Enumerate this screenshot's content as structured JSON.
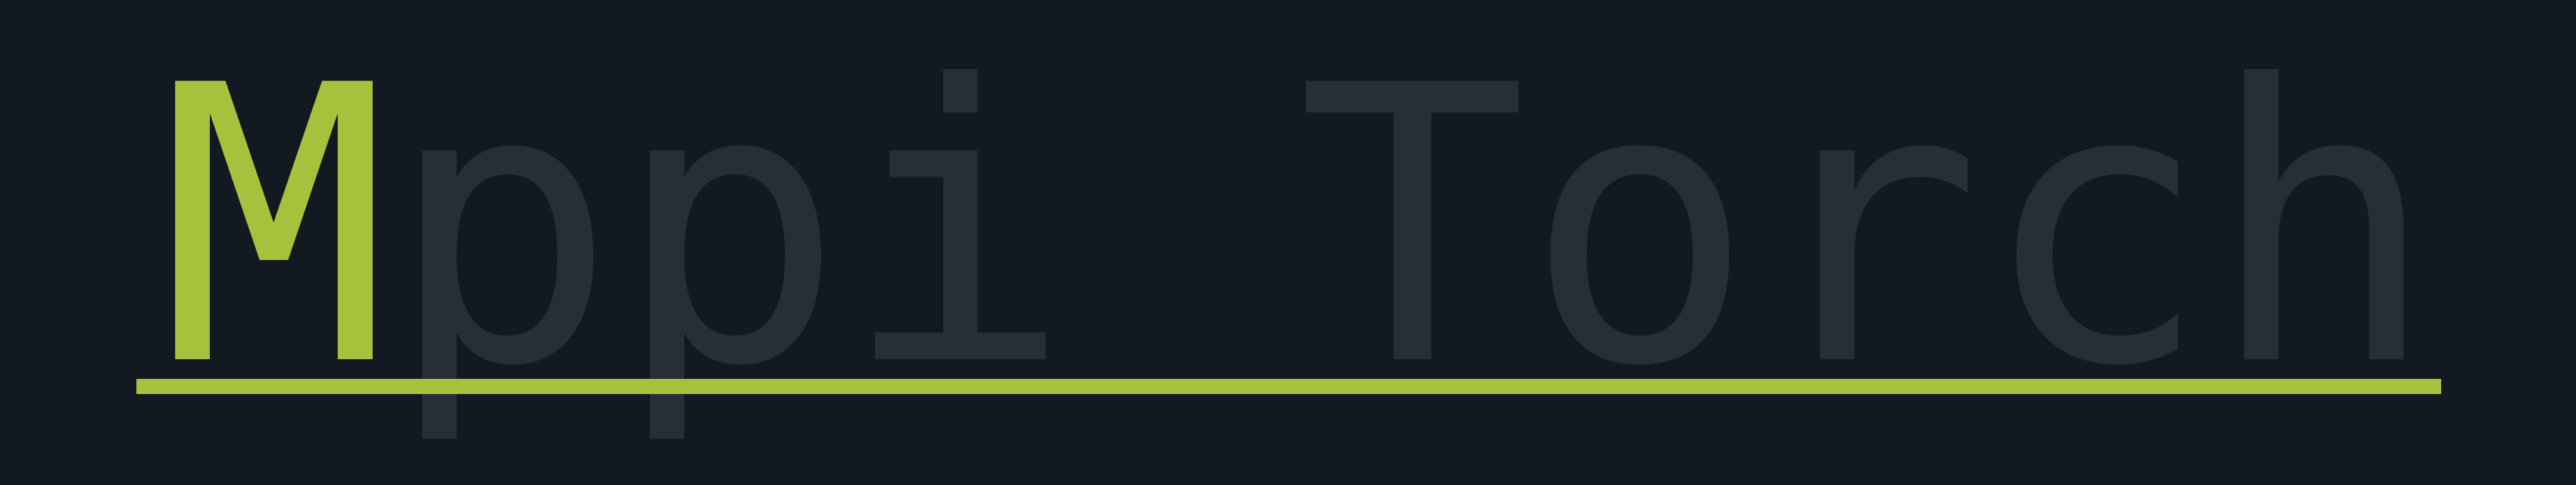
{
  "banner": {
    "initial": "M",
    "rest": "ppi Torch"
  },
  "colors": {
    "background": "#131920",
    "text": "#272e38",
    "accent": "#a6c23c"
  }
}
